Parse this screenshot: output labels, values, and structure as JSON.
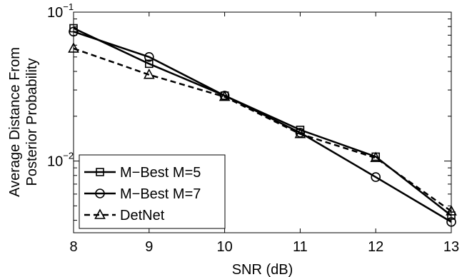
{
  "chart_data": {
    "type": "line",
    "title": "",
    "xlabel": "SNR (dB)",
    "ylabel": [
      "Average Distance From",
      "Posterior Probability"
    ],
    "xlim": [
      8,
      13
    ],
    "ylim": [
      0.0033,
      0.1
    ],
    "yscale": "log",
    "grid": false,
    "legend_position": "bottom-left",
    "x_ticks": [
      "8",
      "9",
      "10",
      "11",
      "12",
      "13"
    ],
    "x_tick_values": [
      8,
      9,
      10,
      11,
      12,
      13
    ],
    "y_ticks": [
      {
        "value": 0.1,
        "base": "10",
        "exp": "−1"
      },
      {
        "value": 0.01,
        "base": "10",
        "exp": "−2"
      }
    ],
    "series": [
      {
        "name": "M−Best M=5",
        "marker": "square",
        "dash": "solid",
        "x": [
          8,
          9,
          10,
          11,
          12,
          13
        ],
        "y": [
          0.078,
          0.045,
          0.0275,
          0.0162,
          0.0107,
          0.0043
        ]
      },
      {
        "name": "M−Best M=7",
        "marker": "circle",
        "dash": "solid",
        "x": [
          8,
          9,
          10,
          11,
          12,
          13
        ],
        "y": [
          0.074,
          0.05,
          0.0275,
          0.0155,
          0.0078,
          0.0039
        ]
      },
      {
        "name": "DetNet",
        "marker": "triangle",
        "dash": "dashed",
        "x": [
          8,
          9,
          10,
          11,
          12,
          13
        ],
        "y": [
          0.057,
          0.038,
          0.027,
          0.0152,
          0.0105,
          0.0046
        ]
      }
    ]
  }
}
